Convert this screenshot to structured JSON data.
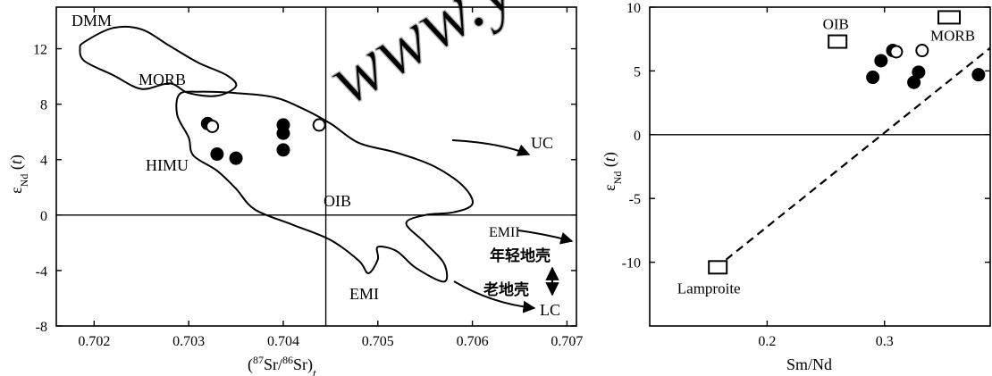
{
  "figure": {
    "watermark": "www.ysKW.com",
    "ink": "#000000",
    "open_fill": "#ffffff",
    "watermark_color": "#b8b8b8"
  },
  "chart_data": [
    {
      "type": "scatter",
      "title": "",
      "xlabel": "(87Sr/86Sr)t",
      "ylabel": "εNd (t)",
      "xlim": [
        0.7016,
        0.7071
      ],
      "ylim": [
        -8,
        15
      ],
      "xticks": [
        0.702,
        0.703,
        0.704,
        0.705,
        0.706,
        0.707
      ],
      "xtick_labels": [
        "0.702",
        "0.703",
        "0.704",
        "0.705",
        "0.706",
        "0.707"
      ],
      "yticks": [
        -8,
        -4,
        0,
        4,
        8,
        12
      ],
      "ytick_labels": [
        "-8",
        "-4",
        "0",
        "4",
        "8",
        "12"
      ],
      "grid": false,
      "reference_lines": {
        "horizontal_y": 0,
        "vertical_x": 0.70445
      },
      "filled_points": [
        {
          "x": 0.7032,
          "y": 6.6
        },
        {
          "x": 0.7033,
          "y": 4.4
        },
        {
          "x": 0.7035,
          "y": 4.1
        },
        {
          "x": 0.704,
          "y": 6.5
        },
        {
          "x": 0.704,
          "y": 5.9
        },
        {
          "x": 0.704,
          "y": 4.7
        }
      ],
      "open_points": [
        {
          "x": 0.70325,
          "y": 6.4
        },
        {
          "x": 0.70438,
          "y": 6.5
        }
      ],
      "fields": [
        {
          "name": "MORB",
          "outline": [
            [
              0.7019,
              12.5
            ],
            [
              0.7022,
              13.5
            ],
            [
              0.7025,
              13.4
            ],
            [
              0.7028,
              12.2
            ],
            [
              0.7031,
              11
            ],
            [
              0.7034,
              10.1
            ],
            [
              0.7035,
              9.3
            ],
            [
              0.7033,
              8.6
            ],
            [
              0.703,
              8.8
            ],
            [
              0.7028,
              9.5
            ],
            [
              0.7025,
              9.1
            ],
            [
              0.7022,
              10.1
            ],
            [
              0.7019,
              11.1
            ],
            [
              0.70185,
              12.0
            ]
          ]
        },
        {
          "name": "OIB",
          "outline": [
            [
              0.7029,
              8.7
            ],
            [
              0.7031,
              8.9
            ],
            [
              0.7035,
              8.8
            ],
            [
              0.7039,
              8.5
            ],
            [
              0.7042,
              7.7
            ],
            [
              0.7045,
              6.6
            ],
            [
              0.7048,
              5.2
            ],
            [
              0.7052,
              4.5
            ],
            [
              0.7056,
              3.5
            ],
            [
              0.7059,
              2.1
            ],
            [
              0.706,
              0.8
            ],
            [
              0.7058,
              0.2
            ],
            [
              0.7055,
              0.0
            ],
            [
              0.7053,
              -0.6
            ],
            [
              0.7055,
              -2.0
            ],
            [
              0.7057,
              -3.5
            ],
            [
              0.7057,
              -4.8
            ],
            [
              0.7054,
              -3.8
            ],
            [
              0.7052,
              -2.6
            ],
            [
              0.705,
              -2.3
            ],
            [
              0.705,
              -3.2
            ],
            [
              0.7049,
              -4.2
            ],
            [
              0.7048,
              -3.3
            ],
            [
              0.7045,
              -1.8
            ],
            [
              0.7041,
              -0.7
            ],
            [
              0.7037,
              0.4
            ],
            [
              0.7035,
              1.9
            ],
            [
              0.7033,
              3.2
            ],
            [
              0.70305,
              4.3
            ],
            [
              0.703,
              5.6
            ],
            [
              0.70288,
              7.2
            ]
          ]
        }
      ],
      "labels": [
        "DMM",
        "MORB",
        "HIMU",
        "OIB",
        "UC",
        "EMII",
        "EMI",
        "LC"
      ],
      "chinese_labels": {
        "young_crust": "年轻地壳",
        "old_crust": "老地壳"
      }
    },
    {
      "type": "scatter",
      "title": "",
      "xlabel": "Sm/Nd",
      "ylabel": "εNd (t)",
      "xlim": [
        0.1,
        0.39
      ],
      "ylim": [
        -15,
        10
      ],
      "xticks": [
        0.2,
        0.3
      ],
      "xtick_labels": [
        "0.2",
        "0.3"
      ],
      "yticks": [
        -10,
        -5,
        0,
        5,
        10
      ],
      "ytick_labels": [
        "-10",
        "-5",
        "0",
        "5",
        "10"
      ],
      "grid": false,
      "reference_lines": {
        "horizontal_y": 0
      },
      "filled_points": [
        {
          "x": 0.29,
          "y": 4.5
        },
        {
          "x": 0.297,
          "y": 5.8
        },
        {
          "x": 0.307,
          "y": 6.6
        },
        {
          "x": 0.325,
          "y": 4.1
        },
        {
          "x": 0.329,
          "y": 4.9
        },
        {
          "x": 0.38,
          "y": 4.7
        }
      ],
      "open_points": [
        {
          "x": 0.31,
          "y": 6.5
        },
        {
          "x": 0.332,
          "y": 6.6
        }
      ],
      "square_markers": [
        {
          "label": "OIB",
          "x": 0.26,
          "y": 7.3
        },
        {
          "label": "MORB",
          "x": 0.355,
          "y": 9.2
        },
        {
          "label": "Lamproite",
          "x": 0.158,
          "y": -10.4
        }
      ],
      "dashed_line": [
        [
          0.165,
          -9.8
        ],
        [
          0.39,
          6.8
        ]
      ]
    }
  ]
}
